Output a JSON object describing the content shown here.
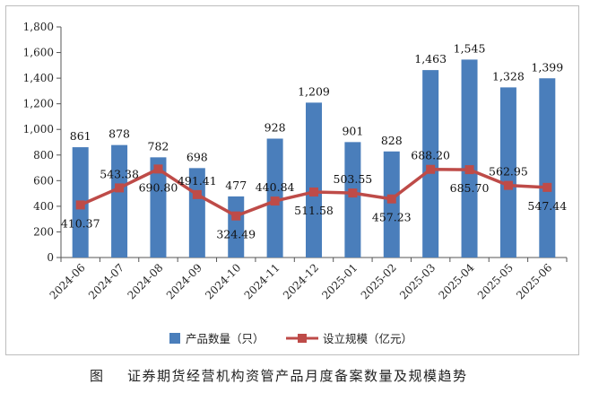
{
  "caption": {
    "label": "图",
    "text": "证券期货经营机构资管产品月度备案数量及规模趋势"
  },
  "chart_data": {
    "type": "bar",
    "categories": [
      "2024-06",
      "2024-07",
      "2024-08",
      "2024-09",
      "2024-10",
      "2024-11",
      "2024-12",
      "2025-01",
      "2025-02",
      "2025-03",
      "2025-04",
      "2025-05",
      "2025-06"
    ],
    "series": [
      {
        "name": "产品数量（只）",
        "type": "bar",
        "color": "#4a7ebb",
        "values": [
          861,
          878,
          782,
          698,
          477,
          928,
          1209,
          901,
          828,
          1463,
          1545,
          1328,
          1399
        ],
        "labels": [
          "861",
          "878",
          "782",
          "698",
          "477",
          "928",
          "1,209",
          "901",
          "828",
          "1,463",
          "1,545",
          "1,328",
          "1,399"
        ]
      },
      {
        "name": "设立规模（亿元）",
        "type": "line",
        "color": "#be4b48",
        "values": [
          410.37,
          543.38,
          690.8,
          491.41,
          324.49,
          440.84,
          511.58,
          503.55,
          457.23,
          688.2,
          685.7,
          562.95,
          547.44
        ],
        "labels": [
          "410.37",
          "543.38",
          "690.80",
          "491.41",
          "324.49",
          "440.84",
          "511.58",
          "503.55",
          "457.23",
          "688.20",
          "685.70",
          "562.95",
          "547.44"
        ]
      }
    ],
    "ylim": [
      0,
      1800
    ],
    "yticks": [
      "0",
      "200",
      "400",
      "600",
      "800",
      "1,000",
      "1,200",
      "1,400",
      "1,600",
      "1,800"
    ],
    "gridlines": false,
    "legend": "bottom"
  }
}
